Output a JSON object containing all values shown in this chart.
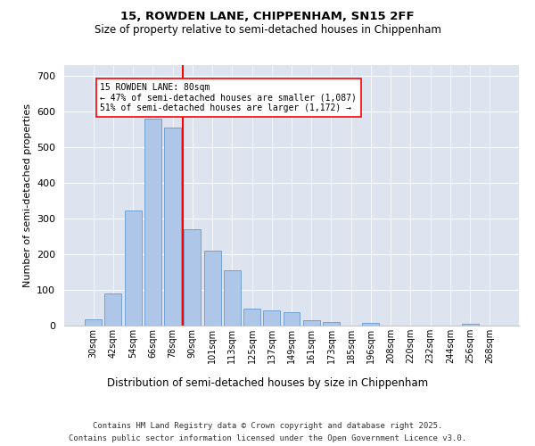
{
  "title1": "15, ROWDEN LANE, CHIPPENHAM, SN15 2FF",
  "title2": "Size of property relative to semi-detached houses in Chippenham",
  "xlabel": "Distribution of semi-detached houses by size in Chippenham",
  "ylabel": "Number of semi-detached properties",
  "categories": [
    "30sqm",
    "42sqm",
    "54sqm",
    "66sqm",
    "78sqm",
    "90sqm",
    "101sqm",
    "113sqm",
    "125sqm",
    "137sqm",
    "149sqm",
    "161sqm",
    "173sqm",
    "185sqm",
    "196sqm",
    "208sqm",
    "220sqm",
    "232sqm",
    "244sqm",
    "256sqm",
    "268sqm"
  ],
  "values": [
    18,
    90,
    322,
    578,
    553,
    270,
    210,
    155,
    47,
    42,
    37,
    16,
    10,
    0,
    8,
    0,
    0,
    0,
    0,
    5,
    0
  ],
  "bar_color": "#aec6e8",
  "bar_edgecolor": "#6699cc",
  "background_color": "#dde4f0",
  "vline_x": 4.5,
  "vline_color": "red",
  "annotation_text": "15 ROWDEN LANE: 80sqm\n← 47% of semi-detached houses are smaller (1,087)\n51% of semi-detached houses are larger (1,172) →",
  "ylim": [
    0,
    730
  ],
  "yticks": [
    0,
    100,
    200,
    300,
    400,
    500,
    600,
    700
  ],
  "footer1": "Contains HM Land Registry data © Crown copyright and database right 2025.",
  "footer2": "Contains public sector information licensed under the Open Government Licence v3.0."
}
